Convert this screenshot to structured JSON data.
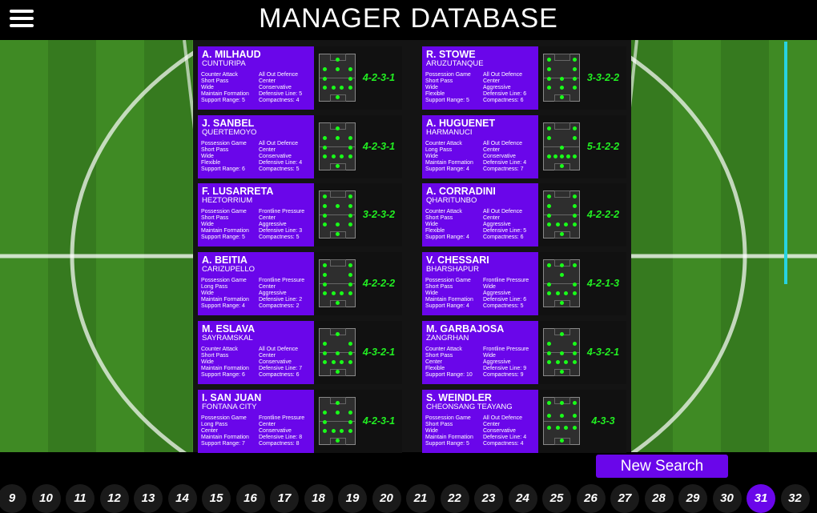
{
  "header": {
    "title": "MANAGER DATABASE"
  },
  "new_search_label": "New Search",
  "managers": [
    {
      "name": "A. MILHAUD",
      "club": "CUNTURIPA",
      "col1": [
        "Counter Attack",
        "Short Pass",
        "Wide",
        "Maintain Formation",
        "Support Range: 5"
      ],
      "col2": [
        "All Out Defence",
        "Center",
        "Conservative",
        "Defensive Line: 5",
        "Compactness: 4"
      ],
      "formation": "4-2-3-1"
    },
    {
      "name": "R. STOWE",
      "club": "ARUZUTANQUE",
      "col1": [
        "Possession Game",
        "Short Pass",
        "Wide",
        "Flexible",
        "Support Range: 5"
      ],
      "col2": [
        "All Out Defence",
        "Center",
        "Aggressive",
        "Defensive Line: 6",
        "Compactness: 6"
      ],
      "formation": "3-3-2-2"
    },
    {
      "name": "J. SANBEL",
      "club": "QUERTEMOYO",
      "col1": [
        "Possession Game",
        "Short Pass",
        "Wide",
        "Flexible",
        "Support Range: 6"
      ],
      "col2": [
        "All Out Defence",
        "Center",
        "Conservative",
        "Defensive Line: 4",
        "Compactness: 5"
      ],
      "formation": "4-2-3-1"
    },
    {
      "name": "A. HUGUENET",
      "club": "HARMANUCI",
      "col1": [
        "Counter Attack",
        "Long Pass",
        "Wide",
        "Maintain Formation",
        "Support Range: 4"
      ],
      "col2": [
        "All Out Defence",
        "Center",
        "Conservative",
        "Defensive Line: 4",
        "Compactness: 7"
      ],
      "formation": "5-1-2-2"
    },
    {
      "name": "F. LUSARRETA",
      "club": "HEZTORRIUM",
      "col1": [
        "Possession Game",
        "Short Pass",
        "Wide",
        "Maintain Formation",
        "Support Range: 5"
      ],
      "col2": [
        "Frontline Pressure",
        "Center",
        "Aggressive",
        "Defensive Line: 3",
        "Compactness: 5"
      ],
      "formation": "3-2-3-2"
    },
    {
      "name": "A. CORRADINI",
      "club": "QHARITUNBO",
      "col1": [
        "Counter Attack",
        "Short Pass",
        "Wide",
        "Flexible",
        "Support Range: 4"
      ],
      "col2": [
        "All Out Defence",
        "Center",
        "Aggressive",
        "Defensive Line: 5",
        "Compactness: 6"
      ],
      "formation": "4-2-2-2"
    },
    {
      "name": "A. BEITIA",
      "club": "CARIZUPELLO",
      "col1": [
        "Possession Game",
        "Long Pass",
        "Wide",
        "Maintain Formation",
        "Support Range: 4"
      ],
      "col2": [
        "Frontline Pressure",
        "Center",
        "Aggressive",
        "Defensive Line: 2",
        "Compactness: 2"
      ],
      "formation": "4-2-2-2"
    },
    {
      "name": "V. CHESSARI",
      "club": "BHARSHAPUR",
      "col1": [
        "Possession Game",
        "Short Pass",
        "Wide",
        "Maintain Formation",
        "Support Range: 4"
      ],
      "col2": [
        "Frontline Pressure",
        "Wide",
        "Aggressive",
        "Defensive Line: 6",
        "Compactness: 5"
      ],
      "formation": "4-2-1-3"
    },
    {
      "name": "M. ESLAVA",
      "club": "SAYRAMSKAL",
      "col1": [
        "Counter Attack",
        "Short Pass",
        "Wide",
        "Maintain Formation",
        "Support Range: 6"
      ],
      "col2": [
        "All Out Defence",
        "Center",
        "Conservative",
        "Defensive Line: 7",
        "Compactness: 6"
      ],
      "formation": "4-3-2-1"
    },
    {
      "name": "M. GARBAJOSA",
      "club": "ZANGRHAN",
      "col1": [
        "Counter Attack",
        "Short Pass",
        "Center",
        "Flexible",
        "Support Range: 10"
      ],
      "col2": [
        "Frontline Pressure",
        "Wide",
        "Aggressive",
        "Defensive Line: 9",
        "Compactness: 9"
      ],
      "formation": "4-3-2-1"
    },
    {
      "name": "I. SAN JUAN",
      "club": "FONTANA CITY",
      "col1": [
        "Possession Game",
        "Long Pass",
        "Center",
        "Maintain Formation",
        "Support Range: 7"
      ],
      "col2": [
        "Frontline Pressure",
        "Center",
        "Conservative",
        "Defensive Line: 8",
        "Compactness: 8"
      ],
      "formation": "4-2-3-1"
    },
    {
      "name": "S. WEINDLER",
      "club": "CHEONSANG TEAYANG",
      "col1": [
        "Possession Game",
        "Short Pass",
        "Wide",
        "Maintain Formation",
        "Support Range: 5"
      ],
      "col2": [
        "All Out Defence",
        "Center",
        "Conservative",
        "Defensive Line: 4",
        "Compactness: 4"
      ],
      "formation": "4-3-3"
    }
  ],
  "pagination": {
    "pages": [
      "9",
      "10",
      "11",
      "12",
      "13",
      "14",
      "15",
      "16",
      "17",
      "18",
      "19",
      "20",
      "21",
      "22",
      "23",
      "24",
      "25",
      "26",
      "27",
      "28",
      "29",
      "30",
      "31",
      "32"
    ],
    "active": "31"
  },
  "colors": {
    "accent": "#6a06ea",
    "formation_text": "#22f022",
    "scrollbar": "#27d3e0"
  }
}
